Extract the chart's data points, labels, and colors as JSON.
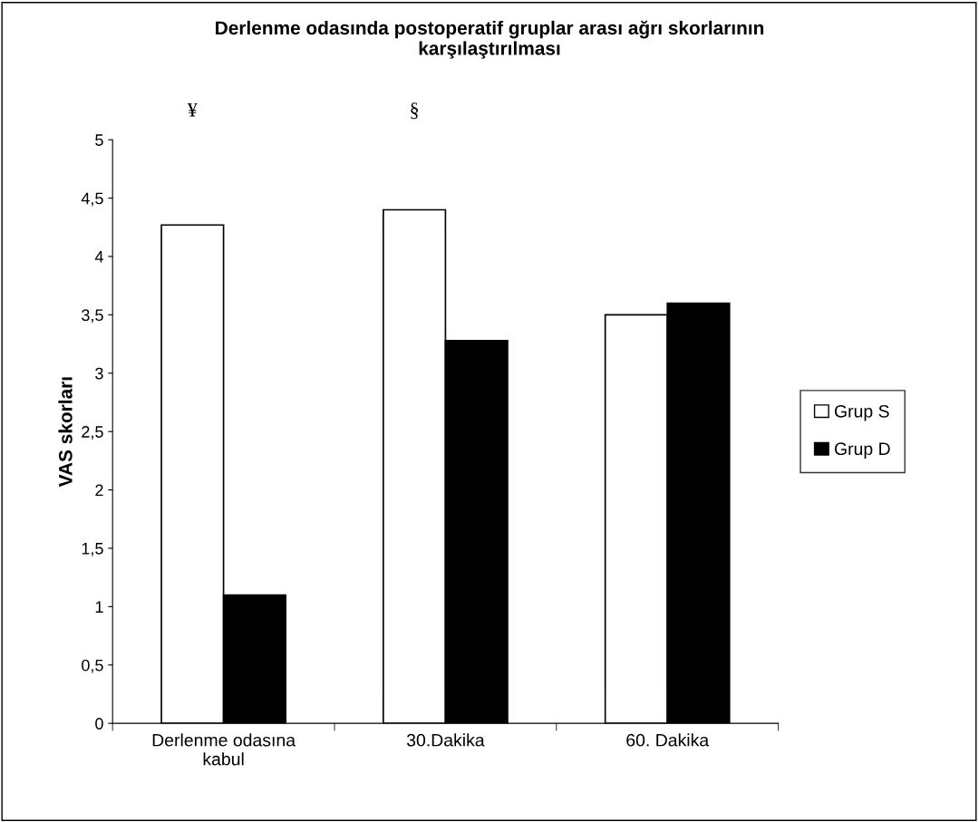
{
  "chart_data": {
    "type": "bar",
    "title": "Derlenme odasında postoperatif gruplar arası ağrı skorlarının\nkarşılaştırılması",
    "ylabel": "VAS skorları",
    "categories": [
      "Derlenme odasına\nkabul",
      "30.Dakika",
      "60. Dakika"
    ],
    "series": [
      {
        "name": "Grup S",
        "color": "#ffffff",
        "values": [
          4.27,
          4.4,
          3.5
        ]
      },
      {
        "name": "Grup D",
        "color": "#000000",
        "values": [
          1.1,
          3.28,
          3.6
        ]
      }
    ],
    "annotations": [
      "¥",
      "§"
    ],
    "ylim": [
      0,
      5
    ],
    "yticks": [
      0,
      {
        "value": 0.5,
        "label": "0,5"
      },
      1,
      {
        "value": 1.5,
        "label": "1,5"
      },
      2,
      {
        "value": 2.5,
        "label": "2,5"
      },
      3,
      {
        "value": 3.5,
        "label": "3,5"
      },
      4,
      {
        "value": 4.5,
        "label": "4,5"
      },
      5
    ],
    "grid": false,
    "legend": "right"
  }
}
